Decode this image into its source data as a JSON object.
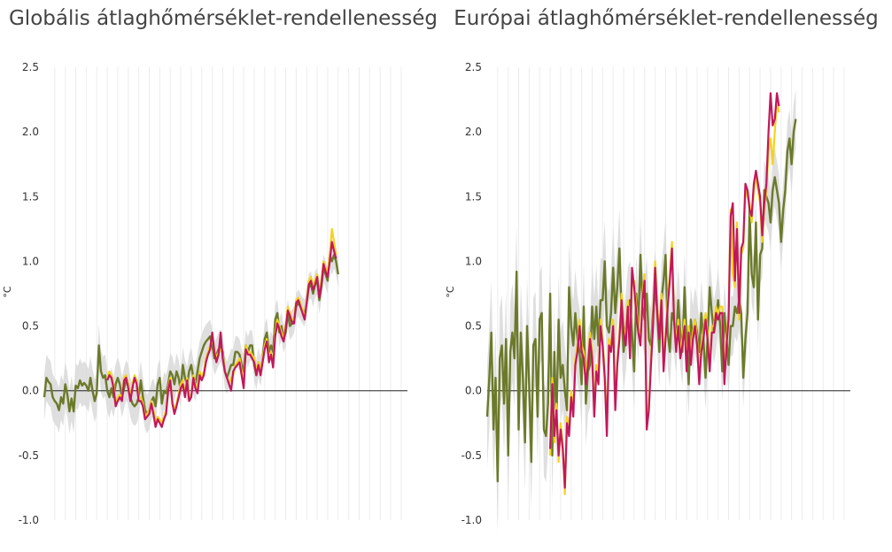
{
  "chart_data": [
    {
      "type": "line",
      "title": "Globális átlaghőmérséklet-rendellenesség",
      "ylabel": "°C",
      "ylim": [
        -1.0,
        2.5
      ],
      "yticks": [
        "2.5",
        "2.0",
        "1.5",
        "1.0",
        "0.5",
        "0.0",
        "-0.5",
        "-1.0"
      ],
      "xlim": [
        1850,
        2023
      ],
      "grid": true,
      "colors": {
        "olive": "#6b7a2a",
        "yellow": "#f5d21f",
        "magenta": "#c2185b",
        "band": "#d9d9d9",
        "zero": "#222222"
      },
      "series": [
        {
          "color": "#6b7a2a",
          "x_start": 1850,
          "values": [
            -0.05,
            0.1,
            0.07,
            0.05,
            -0.05,
            -0.08,
            -0.1,
            -0.15,
            -0.05,
            -0.1,
            0.05,
            -0.03,
            -0.16,
            -0.06,
            -0.16,
            0.04,
            0.02,
            0.08,
            0.04,
            0.06,
            0.04,
            0.0,
            0.1,
            0.0,
            -0.08,
            -0.02,
            0.35,
            0.15,
            0.1,
            0.12,
            0.0,
            -0.05,
            0.02,
            -0.05,
            0.05,
            0.1,
            0.05,
            -0.05,
            0.02,
            0.08,
            0.05,
            -0.05,
            -0.1,
            -0.12,
            -0.1,
            -0.05,
            0.08,
            -0.05,
            -0.15,
            -0.18,
            -0.15,
            -0.08,
            -0.05,
            -0.12,
            0.05,
            0.1,
            -0.1,
            0.0,
            -0.02,
            0.05,
            0.15,
            0.12,
            0.05,
            0.15,
            0.1,
            0.0,
            0.2,
            0.1,
            0.05,
            0.15,
            0.2,
            0.1,
            0.05,
            0.15,
            0.25,
            0.3,
            0.35,
            0.38,
            0.4,
            0.42,
            0.35,
            0.25,
            0.28,
            0.32,
            0.35,
            0.3,
            0.15,
            0.1,
            0.15,
            0.2,
            0.2,
            0.3,
            0.3,
            0.28,
            0.2,
            0.15,
            0.35,
            0.3,
            0.35,
            0.35,
            0.2,
            0.12,
            0.22,
            0.15,
            0.25,
            0.4,
            0.45,
            0.3,
            0.35,
            0.3,
            0.55,
            0.6,
            0.45,
            0.5,
            0.4,
            0.45,
            0.6,
            0.5,
            0.52,
            0.55,
            0.65,
            0.68,
            0.65,
            0.62,
            0.6,
            0.68,
            0.8,
            0.82,
            0.75,
            0.82,
            0.85,
            0.7,
            0.8,
            0.95,
            0.9,
            0.85,
            1.05,
            1.0,
            1.05,
            1.0,
            0.9
          ]
        },
        {
          "color": "#f5d21f",
          "x_start": 1880,
          "values": [
            0.1,
            0.15,
            0.12,
            0.05,
            -0.1,
            -0.05,
            -0.03,
            -0.05,
            0.1,
            0.12,
            0.05,
            -0.05,
            0.05,
            0.12,
            0.08,
            -0.05,
            -0.05,
            -0.1,
            -0.2,
            -0.18,
            -0.15,
            -0.08,
            -0.15,
            -0.25,
            -0.2,
            -0.22,
            -0.25,
            -0.2,
            -0.15,
            0.02,
            0.1,
            -0.08,
            -0.15,
            -0.1,
            -0.02,
            0.05,
            0.08,
            -0.02,
            0.1,
            -0.05,
            -0.03,
            0.12,
            0.05,
            0.0,
            0.15,
            0.1,
            0.15,
            0.25,
            0.3,
            0.35,
            0.4,
            0.32,
            0.25,
            0.3,
            0.32,
            0.28,
            0.15,
            0.1,
            0.05,
            0.1,
            0.12,
            0.2,
            0.22,
            0.25,
            0.15,
            0.05,
            0.35,
            0.3,
            0.3,
            0.28,
            0.25,
            0.15,
            0.22,
            0.15,
            0.25,
            0.35,
            0.4,
            0.25,
            0.3,
            0.2,
            0.45,
            0.55,
            0.5,
            0.45,
            0.4,
            0.5,
            0.65,
            0.6,
            0.55,
            0.55,
            0.7,
            0.72,
            0.68,
            0.62,
            0.58,
            0.7,
            0.85,
            0.88,
            0.8,
            0.85,
            0.9,
            0.75,
            0.85,
            1.0,
            0.95,
            0.9,
            1.05,
            1.25,
            1.15,
            1.05
          ]
        },
        {
          "color": "#c2185b",
          "x_start": 1880,
          "values": [
            0.08,
            0.12,
            0.1,
            0.02,
            -0.12,
            -0.08,
            -0.05,
            -0.08,
            0.08,
            0.1,
            0.02,
            -0.08,
            0.02,
            0.1,
            0.05,
            -0.08,
            -0.08,
            -0.12,
            -0.22,
            -0.2,
            -0.18,
            -0.1,
            -0.18,
            -0.28,
            -0.22,
            -0.25,
            -0.28,
            -0.22,
            -0.18,
            0.0,
            0.08,
            -0.1,
            -0.18,
            -0.12,
            -0.05,
            0.02,
            0.05,
            -0.05,
            0.08,
            -0.08,
            -0.05,
            0.1,
            0.02,
            -0.02,
            0.12,
            0.08,
            0.12,
            0.22,
            0.28,
            0.32,
            0.45,
            0.3,
            0.22,
            0.28,
            0.45,
            0.25,
            0.15,
            0.1,
            0.05,
            0.0,
            0.15,
            0.18,
            0.2,
            0.22,
            0.12,
            0.02,
            0.32,
            0.28,
            0.28,
            0.25,
            0.22,
            0.12,
            0.2,
            0.12,
            0.22,
            0.32,
            0.38,
            0.22,
            0.28,
            0.18,
            0.42,
            0.52,
            0.48,
            0.42,
            0.38,
            0.48,
            0.62,
            0.58,
            0.52,
            0.52,
            0.68,
            0.7,
            0.65,
            0.6,
            0.55,
            0.68,
            0.82,
            0.85,
            0.78,
            0.82,
            0.88,
            0.72,
            0.82,
            0.98,
            0.92,
            0.88,
            1.0,
            1.15,
            1.08,
            1.02
          ]
        }
      ]
    },
    {
      "type": "line",
      "title": "Európai átlaghőmérséklet-rendellenesség",
      "ylabel": "°C",
      "ylim": [
        -1.0,
        2.5
      ],
      "yticks": [
        "2.5",
        "2.0",
        "1.5",
        "1.0",
        "0.5",
        "0.0",
        "-0.5",
        "-1.0"
      ],
      "xlim": [
        1850,
        2023
      ],
      "grid": true,
      "colors": {
        "olive": "#6b7a2a",
        "yellow": "#f5d21f",
        "magenta": "#c2185b",
        "band": "#d9d9d9",
        "zero": "#222222"
      },
      "series": [
        {
          "color": "#6b7a2a",
          "x_start": 1850,
          "values": [
            -0.2,
            0.1,
            0.45,
            -0.3,
            0.1,
            -0.7,
            0.25,
            0.35,
            -0.1,
            0.4,
            -0.5,
            0.3,
            0.45,
            0.25,
            0.92,
            -0.3,
            0.45,
            0.1,
            -0.4,
            0.5,
            0.05,
            -0.55,
            0.35,
            0.4,
            -0.2,
            0.55,
            0.6,
            -0.3,
            -0.35,
            -0.1,
            0.75,
            -0.5,
            0.3,
            -0.25,
            0.55,
            0.1,
            0.2,
            0.0,
            -0.15,
            0.8,
            0.5,
            0.35,
            0.6,
            0.4,
            0.3,
            0.05,
            0.65,
            -0.1,
            0.15,
            0.2,
            0.65,
            0.4,
            0.65,
            0.35,
            0.7,
            0.7,
            1.0,
            0.5,
            0.45,
            0.6,
            0.95,
            0.6,
            0.8,
            1.1,
            0.6,
            0.3,
            0.45,
            0.65,
            0.7,
            0.45,
            0.15,
            0.75,
            0.5,
            1.05,
            0.65,
            0.55,
            0.75,
            0.4,
            0.35,
            0.6,
            0.8,
            0.6,
            0.3,
            0.7,
            0.85,
            1.05,
            0.45,
            0.3,
            0.6,
            0.55,
            0.4,
            0.7,
            0.45,
            0.3,
            0.8,
            0.4,
            0.05,
            0.55,
            0.4,
            0.55,
            0.45,
            0.3,
            0.6,
            0.4,
            0.1,
            0.4,
            0.8,
            0.6,
            0.45,
            0.55,
            0.7,
            0.5,
            0.15,
            0.6,
            0.4,
            0.2,
            0.5,
            0.5,
            0.65,
            0.6,
            0.7,
            0.6,
            0.1,
            0.4,
            0.6,
            1.4,
            0.9,
            0.8,
            1.3,
            0.55,
            1.05,
            1.1,
            1.55,
            1.5,
            1.45,
            1.3,
            1.55,
            1.65,
            1.55,
            1.45,
            1.15,
            1.4,
            1.55,
            1.85,
            1.95,
            1.75,
            2.0,
            2.1
          ]
        },
        {
          "color": "#f5d21f",
          "x_start": 1880,
          "values": [
            -0.5,
            0.1,
            -0.4,
            -0.1,
            -0.55,
            -0.25,
            -0.4,
            -0.8,
            -0.2,
            -0.3,
            0.0,
            -0.15,
            0.25,
            0.35,
            0.55,
            0.35,
            0.3,
            0.1,
            0.25,
            0.45,
            0.3,
            -0.15,
            0.2,
            0.1,
            0.55,
            0.4,
            0.15,
            -0.3,
            0.4,
            0.35,
            0.55,
            -0.1,
            0.25,
            0.45,
            0.75,
            0.5,
            0.4,
            0.7,
            0.3,
            0.8,
            0.85,
            0.65,
            0.5,
            0.4,
            0.75,
            0.9,
            -0.25,
            -0.1,
            0.25,
            0.55,
            1.0,
            0.65,
            0.45,
            0.75,
            0.2,
            0.45,
            0.7,
            0.9,
            1.15,
            0.6,
            0.35,
            0.55,
            0.3,
            0.4,
            0.55,
            0.2,
            0.5,
            0.25,
            0.45,
            0.55,
            0.4,
            0.1,
            0.35,
            0.45,
            0.6,
            0.45,
            0.2,
            0.5,
            0.5,
            0.65,
            0.6,
            0.65,
            0.65,
            0.1,
            0.4,
            0.6,
            1.4,
            0.9,
            0.8,
            1.3,
            0.55,
            1.05,
            1.1,
            1.55,
            1.5,
            1.45,
            1.3,
            1.55,
            1.65,
            1.55,
            1.45,
            1.15,
            1.4,
            1.55,
            1.85,
            1.95,
            1.75,
            2.0,
            2.25,
            2.15
          ]
        },
        {
          "color": "#c2185b",
          "x_start": 1880,
          "values": [
            -0.45,
            0.05,
            -0.35,
            -0.15,
            -0.5,
            -0.3,
            -0.45,
            -0.75,
            -0.25,
            -0.35,
            -0.05,
            -0.2,
            0.2,
            0.3,
            0.5,
            0.3,
            0.25,
            0.05,
            0.2,
            0.4,
            0.25,
            -0.2,
            0.15,
            0.05,
            0.5,
            0.35,
            0.1,
            -0.35,
            0.35,
            0.3,
            0.5,
            -0.15,
            0.2,
            0.4,
            0.7,
            0.45,
            0.35,
            0.65,
            0.25,
            0.95,
            0.8,
            0.6,
            0.45,
            0.35,
            0.7,
            0.85,
            -0.3,
            -0.15,
            0.2,
            0.5,
            0.95,
            0.6,
            0.4,
            0.7,
            0.15,
            0.4,
            0.65,
            0.85,
            1.1,
            0.55,
            0.3,
            0.5,
            0.25,
            0.35,
            0.5,
            0.15,
            0.45,
            0.2,
            0.4,
            0.5,
            0.35,
            0.05,
            0.3,
            0.4,
            0.55,
            0.4,
            0.15,
            0.45,
            0.45,
            0.6,
            0.55,
            0.6,
            0.6,
            0.05,
            0.35,
            0.55,
            1.35,
            1.45,
            0.85,
            1.25,
            0.6,
            1.1,
            1.15,
            1.6,
            1.55,
            1.4,
            1.35,
            1.6,
            1.7,
            1.6,
            1.5,
            1.2,
            1.45,
            1.6,
            2.0,
            2.3,
            2.05,
            2.1,
            2.3,
            2.2
          ]
        }
      ]
    }
  ]
}
